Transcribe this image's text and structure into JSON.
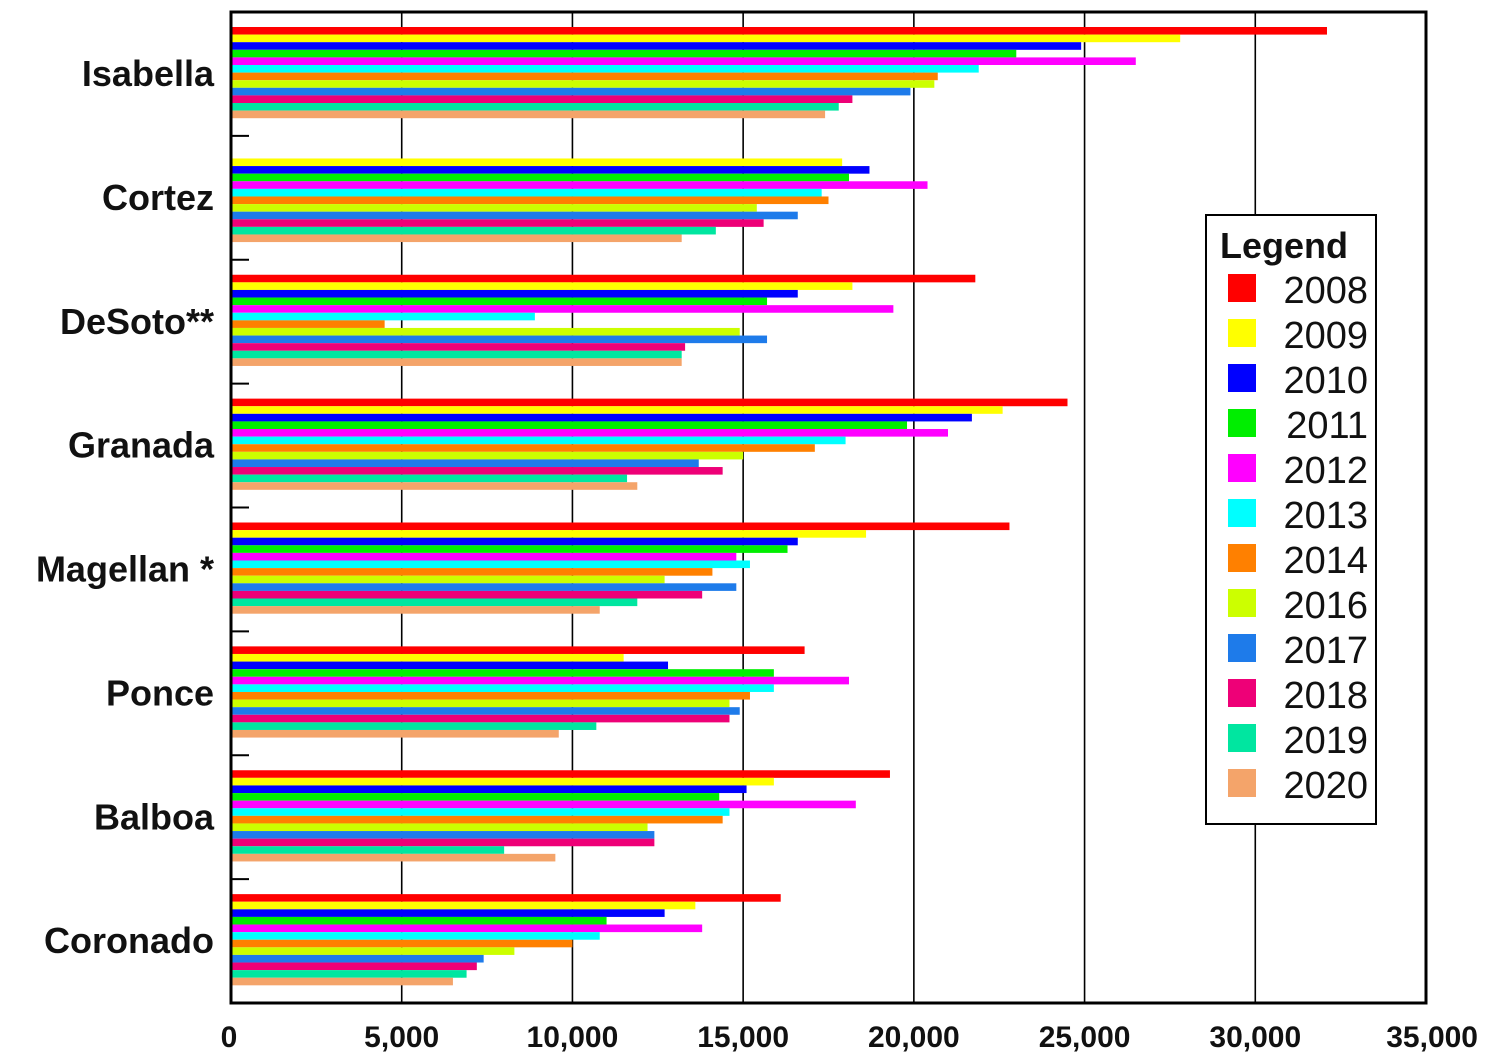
{
  "chart_data": {
    "type": "bar",
    "orientation": "horizontal",
    "categories": [
      "Isabella",
      "Cortez",
      "DeSoto**",
      "Granada",
      "Magellan *",
      "Ponce",
      "Balboa",
      "Coronado"
    ],
    "xlim": [
      0,
      35000
    ],
    "x_ticks": [
      0,
      5000,
      10000,
      15000,
      20000,
      25000,
      30000,
      35000
    ],
    "x_tick_labels": [
      "0",
      "5,000",
      "10,000",
      "15,000",
      "20,000",
      "25,000",
      "30,000",
      "35,000"
    ],
    "grid": "vertical",
    "legend": {
      "title": "Legend",
      "position": "right"
    },
    "series": [
      {
        "name": "2008",
        "color": "#ff0000",
        "values": [
          32100,
          null,
          21800,
          24500,
          22800,
          16800,
          19300,
          16100
        ]
      },
      {
        "name": "2009",
        "color": "#ffff00",
        "values": [
          27800,
          17900,
          18200,
          22600,
          18600,
          11500,
          15900,
          13600
        ]
      },
      {
        "name": "2010",
        "color": "#0000ff",
        "values": [
          24900,
          18700,
          16600,
          21700,
          16600,
          12800,
          15100,
          12700
        ]
      },
      {
        "name": "2011",
        "color": "#00ee00",
        "values": [
          23000,
          18100,
          15700,
          19800,
          16300,
          15900,
          14300,
          11000
        ]
      },
      {
        "name": "2012",
        "color": "#ff00ff",
        "values": [
          26500,
          20400,
          19400,
          21000,
          14800,
          18100,
          18300,
          13800
        ]
      },
      {
        "name": "2013",
        "color": "#00ffff",
        "values": [
          21900,
          17300,
          8900,
          18000,
          15200,
          15900,
          14600,
          10800
        ]
      },
      {
        "name": "2014",
        "color": "#ff8000",
        "values": [
          20700,
          17500,
          4500,
          17100,
          14100,
          15200,
          14400,
          10000
        ]
      },
      {
        "name": "2016",
        "color": "#ccff00",
        "values": [
          20600,
          15400,
          14900,
          15000,
          12700,
          14600,
          12200,
          8300
        ]
      },
      {
        "name": "2017",
        "color": "#1e7bea",
        "values": [
          19900,
          16600,
          15700,
          13700,
          14800,
          14900,
          12400,
          7400
        ]
      },
      {
        "name": "2018",
        "color": "#ee0077",
        "values": [
          18200,
          15600,
          13300,
          14400,
          13800,
          14600,
          12400,
          7200
        ]
      },
      {
        "name": "2019",
        "color": "#00e6a0",
        "values": [
          17800,
          14200,
          13200,
          11600,
          11900,
          10700,
          8000,
          6900
        ]
      },
      {
        "name": "2020",
        "color": "#f4a46a",
        "values": [
          17400,
          13200,
          13200,
          11900,
          10800,
          9600,
          9500,
          6500
        ]
      }
    ]
  }
}
